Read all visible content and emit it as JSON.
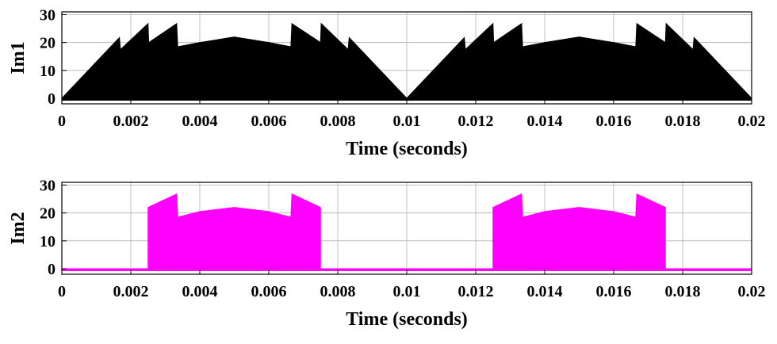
{
  "chart_data": [
    {
      "type": "area",
      "series": [
        {
          "name": "",
          "color": "#000000"
        }
      ],
      "ylabel": "Im1",
      "xlabel": "Time (seconds)",
      "xlim": [
        0,
        0.02
      ],
      "ylim": [
        -2,
        31
      ],
      "x_ticks": [
        0,
        0.002,
        0.004,
        0.006,
        0.008,
        0.01,
        0.012,
        0.014,
        0.016,
        0.018,
        0.02
      ],
      "x_tick_labels": [
        "0",
        "0.002",
        "0.004",
        "0.006",
        "0.008",
        "0.01",
        "0.012",
        "0.014",
        "0.016",
        "0.018",
        "0.02"
      ],
      "y_ticks": [
        0,
        10,
        20,
        30
      ],
      "y_tick_labels": [
        "0",
        "10",
        "20",
        "30"
      ],
      "grid": true,
      "envelope": {
        "upper": [
          [
            0,
            0
          ],
          [
            0.00167,
            21.8
          ],
          [
            0.0017,
            17.5
          ],
          [
            0.0025,
            26.8
          ],
          [
            0.00252,
            20.0
          ],
          [
            0.00333,
            26.8
          ],
          [
            0.00336,
            18.5
          ],
          [
            0.004,
            20.0
          ],
          [
            0.005,
            22.0
          ],
          [
            0.006,
            20.0
          ],
          [
            0.00664,
            18.5
          ],
          [
            0.00667,
            26.8
          ],
          [
            0.0075,
            20.0
          ],
          [
            0.00752,
            26.8
          ],
          [
            0.0083,
            17.5
          ],
          [
            0.00833,
            21.8
          ],
          [
            0.01,
            0
          ],
          [
            0.01167,
            21.8
          ],
          [
            0.0117,
            17.5
          ],
          [
            0.0125,
            26.8
          ],
          [
            0.01252,
            20.0
          ],
          [
            0.01333,
            26.8
          ],
          [
            0.01336,
            18.5
          ],
          [
            0.014,
            20.0
          ],
          [
            0.015,
            22.0
          ],
          [
            0.016,
            20.0
          ],
          [
            0.01664,
            18.5
          ],
          [
            0.01667,
            26.8
          ],
          [
            0.0175,
            20.0
          ],
          [
            0.01752,
            26.8
          ],
          [
            0.0183,
            17.5
          ],
          [
            0.01833,
            21.8
          ],
          [
            0.02,
            0
          ]
        ],
        "lower": 0
      }
    },
    {
      "type": "area",
      "series": [
        {
          "name": "",
          "color": "#ff00ff"
        }
      ],
      "ylabel": "Im2",
      "xlabel": "Time (seconds)",
      "xlim": [
        0,
        0.02
      ],
      "ylim": [
        -2,
        31
      ],
      "x_ticks": [
        0,
        0.002,
        0.004,
        0.006,
        0.008,
        0.01,
        0.012,
        0.014,
        0.016,
        0.018,
        0.02
      ],
      "x_tick_labels": [
        "0",
        "0.002",
        "0.004",
        "0.006",
        "0.008",
        "0.01",
        "0.012",
        "0.014",
        "0.016",
        "0.018",
        "0.02"
      ],
      "y_ticks": [
        0,
        10,
        20,
        30
      ],
      "y_tick_labels": [
        "0",
        "10",
        "20",
        "30"
      ],
      "grid": true,
      "envelope": {
        "upper": [
          [
            0,
            0
          ],
          [
            0.0025,
            0
          ],
          [
            0.0025,
            22.0
          ],
          [
            0.00333,
            26.8
          ],
          [
            0.00336,
            18.5
          ],
          [
            0.004,
            20.5
          ],
          [
            0.005,
            22.0
          ],
          [
            0.006,
            20.5
          ],
          [
            0.00664,
            18.5
          ],
          [
            0.00667,
            26.8
          ],
          [
            0.0075,
            22.0
          ],
          [
            0.0075,
            0
          ],
          [
            0.0125,
            0
          ],
          [
            0.0125,
            22.0
          ],
          [
            0.01333,
            26.8
          ],
          [
            0.01336,
            18.5
          ],
          [
            0.014,
            20.5
          ],
          [
            0.015,
            22.0
          ],
          [
            0.016,
            20.5
          ],
          [
            0.01664,
            18.5
          ],
          [
            0.01667,
            26.8
          ],
          [
            0.0175,
            22.0
          ],
          [
            0.0175,
            0
          ],
          [
            0.02,
            0
          ]
        ],
        "lower": 0
      }
    }
  ]
}
